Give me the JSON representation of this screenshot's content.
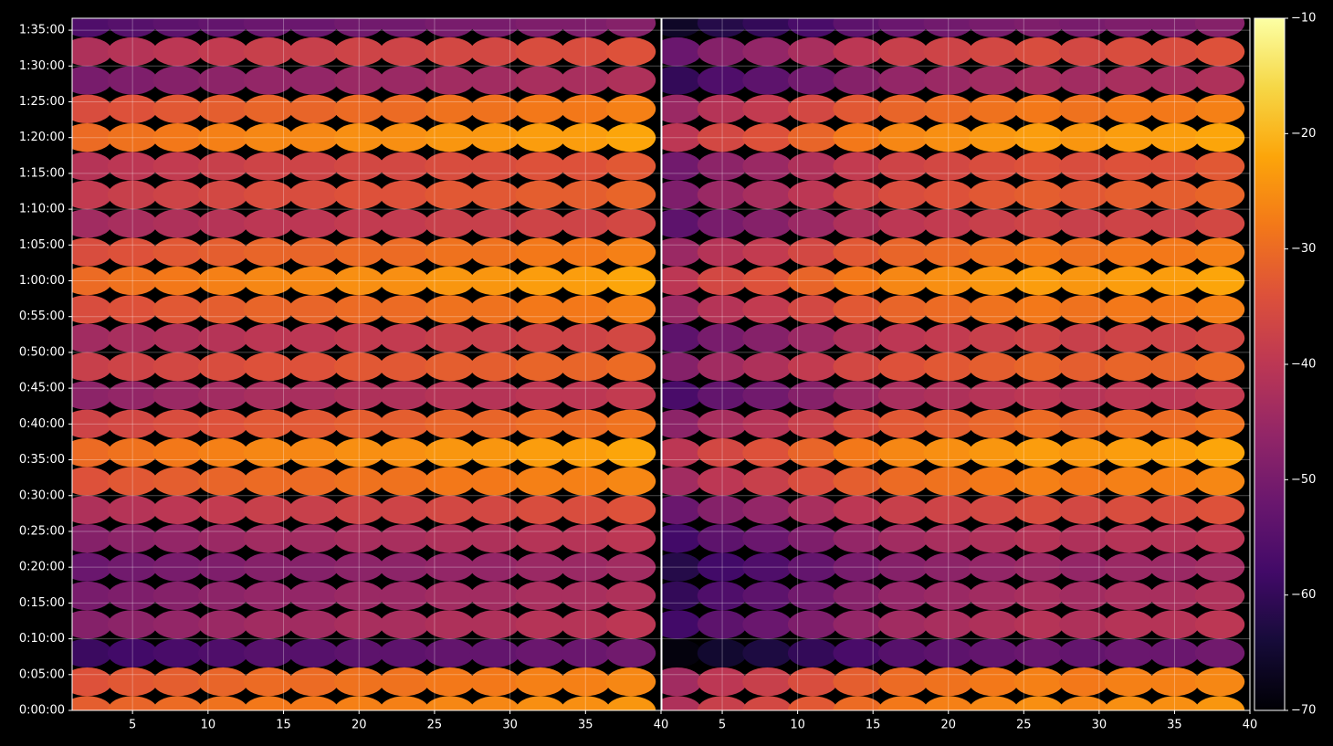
{
  "chart_data": [
    {
      "type": "heatmap",
      "x": [
        2,
        5,
        8,
        11,
        14,
        17,
        20,
        23,
        26,
        29,
        32,
        35,
        38
      ],
      "y": [
        0,
        240,
        480,
        720,
        960,
        1200,
        1440,
        1680,
        1920,
        2160,
        2400,
        2640,
        2880,
        3120,
        3360,
        3600,
        3840,
        4080,
        4320,
        4560,
        4800,
        5040,
        5280,
        5520,
        5760
      ],
      "z": [
        [
          -32,
          -31,
          -30,
          -29,
          -28,
          -28,
          -27,
          -27,
          -26,
          -26,
          -25,
          -25,
          -24
        ],
        [
          -34,
          -33,
          -32,
          -31,
          -30,
          -30,
          -29,
          -29,
          -28,
          -28,
          -27,
          -27,
          -26
        ],
        [
          -59,
          -58,
          -57,
          -56,
          -55,
          -55,
          -54,
          -54,
          -53,
          -53,
          -52,
          -52,
          -51
        ],
        [
          -48,
          -47,
          -46,
          -45,
          -44,
          -44,
          -43,
          -43,
          -42,
          -42,
          -41,
          -41,
          -40
        ],
        [
          -50,
          -49,
          -48,
          -47,
          -46,
          -46,
          -45,
          -45,
          -44,
          -44,
          -43,
          -43,
          -42
        ],
        [
          -52,
          -51,
          -50,
          -49,
          -48,
          -48,
          -47,
          -47,
          -46,
          -46,
          -45,
          -45,
          -44
        ],
        [
          -48,
          -47,
          -46,
          -45,
          -44,
          -44,
          -43,
          -43,
          -42,
          -42,
          -41,
          -41,
          -40
        ],
        [
          -42,
          -41,
          -40,
          -39,
          -38,
          -38,
          -37,
          -37,
          -36,
          -36,
          -35,
          -35,
          -34
        ],
        [
          -34,
          -33,
          -32,
          -31,
          -30,
          -30,
          -29,
          -29,
          -28,
          -28,
          -27,
          -27,
          -26
        ],
        [
          -30,
          -29,
          -28,
          -27,
          -26,
          -26,
          -25,
          -25,
          -24,
          -24,
          -23,
          -23,
          -22
        ],
        [
          -37,
          -36,
          -35,
          -34,
          -33,
          -33,
          -32,
          -32,
          -31,
          -31,
          -30,
          -30,
          -29
        ],
        [
          -47,
          -46,
          -45,
          -44,
          -43,
          -43,
          -42,
          -42,
          -41,
          -41,
          -40,
          -40,
          -39
        ],
        [
          -38,
          -37,
          -36,
          -35,
          -34,
          -34,
          -33,
          -33,
          -32,
          -32,
          -31,
          -31,
          -30
        ],
        [
          -44,
          -43,
          -42,
          -41,
          -40,
          -40,
          -39,
          -39,
          -38,
          -38,
          -37,
          -37,
          -36
        ],
        [
          -35,
          -34,
          -33,
          -32,
          -31,
          -31,
          -30,
          -30,
          -29,
          -29,
          -28,
          -28,
          -27
        ],
        [
          -30,
          -29,
          -28,
          -27,
          -26,
          -26,
          -25,
          -25,
          -24,
          -24,
          -23,
          -23,
          -22
        ],
        [
          -35,
          -34,
          -33,
          -32,
          -31,
          -31,
          -30,
          -30,
          -29,
          -29,
          -28,
          -28,
          -27
        ],
        [
          -44,
          -43,
          -42,
          -41,
          -40,
          -40,
          -39,
          -39,
          -38,
          -38,
          -37,
          -37,
          -36
        ],
        [
          -39,
          -38,
          -37,
          -36,
          -35,
          -35,
          -34,
          -34,
          -33,
          -33,
          -32,
          -32,
          -31
        ],
        [
          -41,
          -40,
          -39,
          -38,
          -37,
          -37,
          -36,
          -36,
          -35,
          -35,
          -34,
          -34,
          -33
        ],
        [
          -30,
          -29,
          -28,
          -27,
          -26,
          -26,
          -25,
          -25,
          -24,
          -24,
          -23,
          -23,
          -22
        ],
        [
          -35,
          -34,
          -33,
          -32,
          -31,
          -31,
          -30,
          -30,
          -29,
          -29,
          -28,
          -28,
          -27
        ],
        [
          -50,
          -49,
          -48,
          -47,
          -46,
          -46,
          -45,
          -45,
          -44,
          -44,
          -43,
          -43,
          -42
        ],
        [
          -42,
          -41,
          -40,
          -39,
          -38,
          -38,
          -37,
          -37,
          -36,
          -36,
          -35,
          -35,
          -34
        ],
        [
          -56,
          -55,
          -54,
          -53,
          -52,
          -52,
          -51,
          -51,
          -50,
          -50,
          -49,
          -49,
          -48
        ]
      ],
      "xlim": [
        1,
        40
      ],
      "ylim": [
        0,
        5800
      ],
      "xticks": [
        5,
        10,
        15,
        20,
        25,
        30,
        35,
        40
      ],
      "yticks": [
        {
          "value": 0,
          "label": "0:00:00"
        },
        {
          "value": 300,
          "label": "0:05:00"
        },
        {
          "value": 600,
          "label": "0:10:00"
        },
        {
          "value": 900,
          "label": "0:15:00"
        },
        {
          "value": 1200,
          "label": "0:20:00"
        },
        {
          "value": 1500,
          "label": "0:25:00"
        },
        {
          "value": 1800,
          "label": "0:30:00"
        },
        {
          "value": 2100,
          "label": "0:35:00"
        },
        {
          "value": 2400,
          "label": "0:40:00"
        },
        {
          "value": 2700,
          "label": "0:45:00"
        },
        {
          "value": 3000,
          "label": "0:50:00"
        },
        {
          "value": 3300,
          "label": "0:55:00"
        },
        {
          "value": 3600,
          "label": "1:00:00"
        },
        {
          "value": 3900,
          "label": "1:05:00"
        },
        {
          "value": 4200,
          "label": "1:10:00"
        },
        {
          "value": 4500,
          "label": "1:15:00"
        },
        {
          "value": 4800,
          "label": "1:20:00"
        },
        {
          "value": 5100,
          "label": "1:25:00"
        },
        {
          "value": 5400,
          "label": "1:30:00"
        },
        {
          "value": 5700,
          "label": "1:35:00"
        }
      ],
      "grid": true
    },
    {
      "type": "heatmap",
      "x": [
        2,
        5,
        8,
        11,
        14,
        17,
        20,
        23,
        26,
        29,
        32,
        35,
        38
      ],
      "y": [
        0,
        240,
        480,
        720,
        960,
        1200,
        1440,
        1680,
        1920,
        2160,
        2400,
        2640,
        2880,
        3120,
        3360,
        3600,
        3840,
        4080,
        4320,
        4560,
        4800,
        5040,
        5280,
        5520,
        5760
      ],
      "z": [
        [
          -42,
          -38,
          -36,
          -33,
          -30,
          -28,
          -27,
          -26,
          -25,
          -26,
          -25,
          -25,
          -24
        ],
        [
          -44,
          -40,
          -38,
          -35,
          -32,
          -30,
          -29,
          -28,
          -27,
          -28,
          -27,
          -27,
          -26
        ],
        [
          -69,
          -65,
          -63,
          -60,
          -57,
          -55,
          -54,
          -53,
          -52,
          -53,
          -52,
          -52,
          -51
        ],
        [
          -58,
          -54,
          -52,
          -49,
          -46,
          -44,
          -43,
          -42,
          -41,
          -42,
          -41,
          -41,
          -40
        ],
        [
          -60,
          -56,
          -54,
          -51,
          -48,
          -46,
          -45,
          -44,
          -43,
          -44,
          -43,
          -43,
          -42
        ],
        [
          -62,
          -58,
          -56,
          -53,
          -50,
          -48,
          -47,
          -46,
          -45,
          -46,
          -45,
          -45,
          -44
        ],
        [
          -58,
          -54,
          -52,
          -49,
          -46,
          -44,
          -43,
          -42,
          -41,
          -42,
          -41,
          -41,
          -40
        ],
        [
          -52,
          -48,
          -46,
          -43,
          -40,
          -38,
          -37,
          -36,
          -35,
          -36,
          -35,
          -35,
          -34
        ],
        [
          -44,
          -40,
          -38,
          -35,
          -32,
          -30,
          -29,
          -28,
          -27,
          -28,
          -27,
          -27,
          -26
        ],
        [
          -40,
          -36,
          -34,
          -31,
          -28,
          -26,
          -25,
          -24,
          -23,
          -24,
          -23,
          -23,
          -22
        ],
        [
          -47,
          -43,
          -41,
          -38,
          -35,
          -33,
          -32,
          -31,
          -30,
          -31,
          -30,
          -30,
          -29
        ],
        [
          -57,
          -53,
          -51,
          -48,
          -45,
          -43,
          -42,
          -41,
          -40,
          -41,
          -40,
          -40,
          -39
        ],
        [
          -48,
          -44,
          -42,
          -39,
          -36,
          -34,
          -33,
          -32,
          -31,
          -32,
          -31,
          -31,
          -30
        ],
        [
          -54,
          -50,
          -48,
          -45,
          -42,
          -40,
          -39,
          -38,
          -37,
          -38,
          -37,
          -37,
          -36
        ],
        [
          -45,
          -41,
          -39,
          -36,
          -33,
          -31,
          -30,
          -29,
          -28,
          -29,
          -28,
          -28,
          -27
        ],
        [
          -40,
          -36,
          -34,
          -31,
          -28,
          -26,
          -25,
          -24,
          -23,
          -24,
          -23,
          -23,
          -22
        ],
        [
          -45,
          -41,
          -39,
          -36,
          -33,
          -31,
          -30,
          -29,
          -28,
          -29,
          -28,
          -28,
          -27
        ],
        [
          -54,
          -50,
          -48,
          -45,
          -42,
          -40,
          -39,
          -38,
          -37,
          -38,
          -37,
          -37,
          -36
        ],
        [
          -49,
          -45,
          -43,
          -40,
          -37,
          -35,
          -34,
          -33,
          -32,
          -33,
          -32,
          -32,
          -31
        ],
        [
          -51,
          -47,
          -45,
          -42,
          -39,
          -37,
          -36,
          -35,
          -34,
          -35,
          -34,
          -34,
          -33
        ],
        [
          -40,
          -36,
          -34,
          -31,
          -28,
          -26,
          -25,
          -24,
          -23,
          -24,
          -23,
          -23,
          -22
        ],
        [
          -45,
          -41,
          -39,
          -36,
          -33,
          -31,
          -30,
          -29,
          -28,
          -29,
          -28,
          -28,
          -27
        ],
        [
          -60,
          -56,
          -54,
          -51,
          -48,
          -46,
          -45,
          -44,
          -43,
          -44,
          -43,
          -43,
          -42
        ],
        [
          -52,
          -48,
          -46,
          -43,
          -40,
          -38,
          -37,
          -36,
          -35,
          -36,
          -35,
          -35,
          -34
        ],
        [
          -66,
          -62,
          -60,
          -57,
          -54,
          -52,
          -51,
          -50,
          -49,
          -50,
          -49,
          -49,
          -48
        ]
      ],
      "xlim": [
        1,
        40
      ],
      "ylim": [
        0,
        5800
      ],
      "xticks": [
        5,
        10,
        15,
        20,
        25,
        30,
        35,
        40
      ],
      "sharey": true,
      "grid": true
    }
  ],
  "colorbar": {
    "colormap": "inferno",
    "clim": [
      -70,
      -10
    ],
    "ticks": [
      {
        "value": -70,
        "label": "−70"
      },
      {
        "value": -60,
        "label": "−60"
      },
      {
        "value": -50,
        "label": "−50"
      },
      {
        "value": -40,
        "label": "−40"
      },
      {
        "value": -30,
        "label": "−30"
      },
      {
        "value": -20,
        "label": "−20"
      },
      {
        "value": -10,
        "label": "−10"
      }
    ]
  }
}
